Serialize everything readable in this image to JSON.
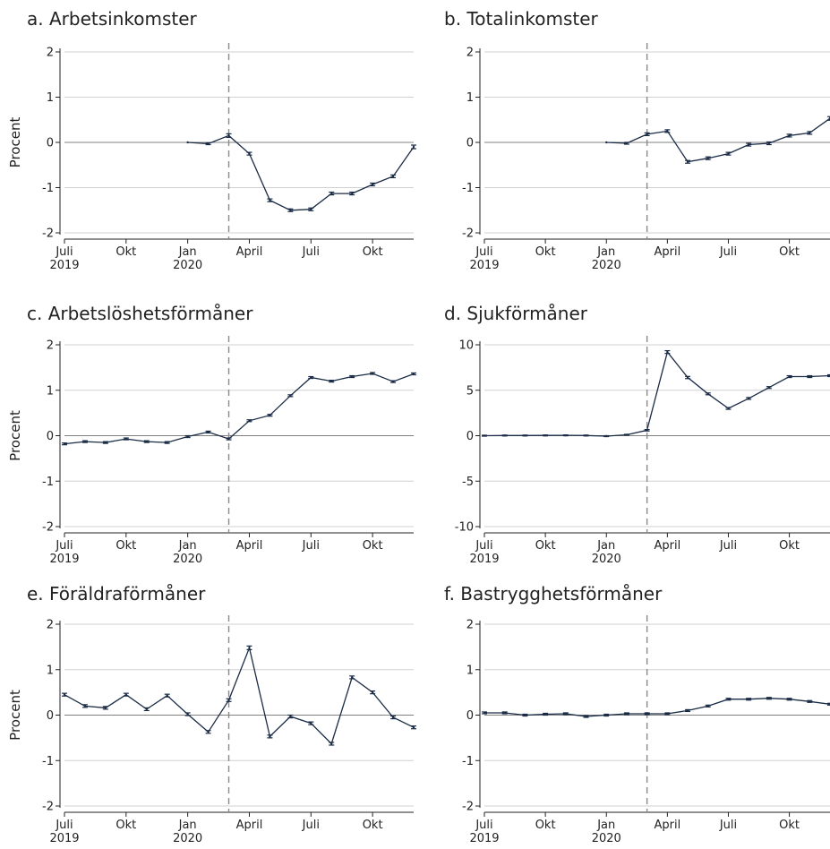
{
  "chart_data": [
    {
      "type": "line",
      "title": "a. Arbetsinkomster",
      "ylabel": "Procent",
      "ylim": [
        -2,
        2
      ],
      "yticks": [
        2,
        1,
        0,
        -1,
        -2
      ],
      "xticks": [
        "2019-07",
        "2019-10",
        "2020-01",
        "2020-04",
        "2020-07",
        "2020-10"
      ],
      "xtick_labels": [
        [
          "Juli",
          "2019"
        ],
        [
          "Okt",
          ""
        ],
        [
          "Jan",
          "2020"
        ],
        [
          "April",
          ""
        ],
        [
          "Juli",
          ""
        ],
        [
          "Okt",
          ""
        ]
      ],
      "xlim": [
        "2019-07",
        "2020-12"
      ],
      "vline": "2020-03",
      "series": [
        {
          "x": [
            "2020-01",
            "2020-02",
            "2020-03",
            "2020-04",
            "2020-05",
            "2020-06",
            "2020-07",
            "2020-08",
            "2020-09",
            "2020-10",
            "2020-11",
            "2020-12"
          ],
          "y": [
            0.0,
            -0.03,
            0.15,
            -0.25,
            -1.28,
            -1.5,
            -1.48,
            -1.13,
            -1.13,
            -0.93,
            -0.75,
            -0.1
          ],
          "err": [
            0,
            0.02,
            0.04,
            0.03,
            0.03,
            0.03,
            0.03,
            0.03,
            0.03,
            0.03,
            0.03,
            0.04
          ]
        }
      ]
    },
    {
      "type": "line",
      "title": "b. Totalinkomster",
      "ylabel": "",
      "ylim": [
        -2,
        2
      ],
      "yticks": [
        2,
        1,
        0,
        -1,
        -2
      ],
      "xticks": [
        "2019-07",
        "2019-10",
        "2020-01",
        "2020-04",
        "2020-07",
        "2020-10"
      ],
      "xtick_labels": [
        [
          "Juli",
          "2019"
        ],
        [
          "Okt",
          ""
        ],
        [
          "Jan",
          "2020"
        ],
        [
          "April",
          ""
        ],
        [
          "Juli",
          ""
        ],
        [
          "Okt",
          ""
        ]
      ],
      "xlim": [
        "2019-07",
        "2020-12"
      ],
      "vline": "2020-03",
      "series": [
        {
          "x": [
            "2020-01",
            "2020-02",
            "2020-03",
            "2020-04",
            "2020-05",
            "2020-06",
            "2020-07",
            "2020-08",
            "2020-09",
            "2020-10",
            "2020-11",
            "2020-12"
          ],
          "y": [
            0.0,
            -0.02,
            0.18,
            0.25,
            -0.43,
            -0.35,
            -0.25,
            -0.05,
            -0.02,
            0.15,
            0.21,
            0.53
          ],
          "err": [
            0,
            0.02,
            0.03,
            0.03,
            0.03,
            0.03,
            0.03,
            0.03,
            0.03,
            0.03,
            0.03,
            0.04
          ]
        }
      ]
    },
    {
      "type": "line",
      "title": "c. Arbetslöshetsförmåner",
      "ylabel": "Procent",
      "ylim": [
        -2,
        2
      ],
      "yticks": [
        2,
        1,
        0,
        -1,
        -2
      ],
      "xticks": [
        "2019-07",
        "2019-10",
        "2020-01",
        "2020-04",
        "2020-07",
        "2020-10"
      ],
      "xtick_labels": [
        [
          "Juli",
          "2019"
        ],
        [
          "Okt",
          ""
        ],
        [
          "Jan",
          "2020"
        ],
        [
          "April",
          ""
        ],
        [
          "Juli",
          ""
        ],
        [
          "Okt",
          ""
        ]
      ],
      "xlim": [
        "2019-07",
        "2020-12"
      ],
      "vline": "2020-03",
      "series": [
        {
          "x": [
            "2019-07",
            "2019-08",
            "2019-09",
            "2019-10",
            "2019-11",
            "2019-12",
            "2020-01",
            "2020-02",
            "2020-03",
            "2020-04",
            "2020-05",
            "2020-06",
            "2020-07",
            "2020-08",
            "2020-09",
            "2020-10",
            "2020-11",
            "2020-12"
          ],
          "y": [
            -0.18,
            -0.13,
            -0.15,
            -0.07,
            -0.13,
            -0.15,
            -0.02,
            0.08,
            -0.07,
            0.33,
            0.45,
            0.88,
            1.28,
            1.2,
            1.3,
            1.37,
            1.19,
            1.36
          ],
          "err": [
            0.02,
            0.02,
            0.02,
            0.02,
            0.02,
            0.02,
            0.02,
            0.02,
            0.02,
            0.02,
            0.02,
            0.02,
            0.02,
            0.02,
            0.02,
            0.02,
            0.02,
            0.02
          ]
        }
      ]
    },
    {
      "type": "line",
      "title": "d. Sjukförmåner",
      "ylabel": "",
      "ylim": [
        -10,
        10
      ],
      "yticks": [
        10,
        5,
        0,
        -5,
        -10
      ],
      "xticks": [
        "2019-07",
        "2019-10",
        "2020-01",
        "2020-04",
        "2020-07",
        "2020-10"
      ],
      "xtick_labels": [
        [
          "Juli",
          "2019"
        ],
        [
          "Okt",
          ""
        ],
        [
          "Jan",
          "2020"
        ],
        [
          "April",
          ""
        ],
        [
          "Juli",
          ""
        ],
        [
          "Okt",
          ""
        ]
      ],
      "xlim": [
        "2019-07",
        "2020-12"
      ],
      "vline": "2020-03",
      "series": [
        {
          "x": [
            "2019-07",
            "2019-08",
            "2019-09",
            "2019-10",
            "2019-11",
            "2019-12",
            "2020-01",
            "2020-02",
            "2020-03",
            "2020-04",
            "2020-05",
            "2020-06",
            "2020-07",
            "2020-08",
            "2020-09",
            "2020-10",
            "2020-11",
            "2020-12"
          ],
          "y": [
            0.0,
            0.02,
            0.02,
            0.03,
            0.04,
            0.02,
            -0.05,
            0.1,
            0.6,
            9.2,
            6.4,
            4.6,
            3.0,
            4.1,
            5.3,
            6.5,
            6.5,
            6.6
          ],
          "err": [
            0.05,
            0.05,
            0.05,
            0.05,
            0.05,
            0.05,
            0.05,
            0.05,
            0.08,
            0.15,
            0.12,
            0.1,
            0.1,
            0.1,
            0.1,
            0.1,
            0.1,
            0.1
          ]
        }
      ]
    },
    {
      "type": "line",
      "title": "e. Föräldraförmåner",
      "ylabel": "Procent",
      "ylim": [
        -2,
        2
      ],
      "yticks": [
        2,
        1,
        0,
        -1,
        -2
      ],
      "xticks": [
        "2019-07",
        "2019-10",
        "2020-01",
        "2020-04",
        "2020-07",
        "2020-10"
      ],
      "xtick_labels": [
        [
          "Juli",
          "2019"
        ],
        [
          "Okt",
          ""
        ],
        [
          "Jan",
          "2020"
        ],
        [
          "April",
          ""
        ],
        [
          "Juli",
          ""
        ],
        [
          "Okt",
          ""
        ]
      ],
      "xlim": [
        "2019-07",
        "2020-12"
      ],
      "vline": "2020-03",
      "series": [
        {
          "x": [
            "2019-07",
            "2019-08",
            "2019-09",
            "2019-10",
            "2019-11",
            "2019-12",
            "2020-01",
            "2020-02",
            "2020-03",
            "2020-04",
            "2020-05",
            "2020-06",
            "2020-07",
            "2020-08",
            "2020-09",
            "2020-10",
            "2020-11",
            "2020-12"
          ],
          "y": [
            0.45,
            0.2,
            0.16,
            0.45,
            0.13,
            0.43,
            0.02,
            -0.37,
            0.33,
            1.48,
            -0.47,
            -0.03,
            -0.18,
            -0.63,
            0.83,
            0.5,
            -0.05,
            -0.27
          ],
          "err": [
            0.03,
            0.03,
            0.03,
            0.03,
            0.03,
            0.03,
            0.03,
            0.03,
            0.03,
            0.04,
            0.03,
            0.03,
            0.03,
            0.03,
            0.03,
            0.03,
            0.03,
            0.03
          ]
        }
      ]
    },
    {
      "type": "line",
      "title": "f. Bastrygghetsförmåner",
      "ylabel": "",
      "ylim": [
        -2,
        2
      ],
      "yticks": [
        2,
        1,
        0,
        -1,
        -2
      ],
      "xticks": [
        "2019-07",
        "2019-10",
        "2020-01",
        "2020-04",
        "2020-07",
        "2020-10"
      ],
      "xtick_labels": [
        [
          "Juli",
          "2019"
        ],
        [
          "Okt",
          ""
        ],
        [
          "Jan",
          "2020"
        ],
        [
          "April",
          ""
        ],
        [
          "Juli",
          ""
        ],
        [
          "Okt",
          ""
        ]
      ],
      "xlim": [
        "2019-07",
        "2020-12"
      ],
      "vline": "2020-03",
      "series": [
        {
          "x": [
            "2019-07",
            "2019-08",
            "2019-09",
            "2019-10",
            "2019-11",
            "2019-12",
            "2020-01",
            "2020-02",
            "2020-03",
            "2020-04",
            "2020-05",
            "2020-06",
            "2020-07",
            "2020-08",
            "2020-09",
            "2020-10",
            "2020-11",
            "2020-12"
          ],
          "y": [
            0.05,
            0.05,
            0.0,
            0.02,
            0.03,
            -0.03,
            0.0,
            0.03,
            0.03,
            0.03,
            0.1,
            0.2,
            0.35,
            0.35,
            0.37,
            0.35,
            0.3,
            0.24
          ],
          "err": [
            0.02,
            0.02,
            0.02,
            0.02,
            0.02,
            0.02,
            0.02,
            0.02,
            0.02,
            0.02,
            0.02,
            0.02,
            0.02,
            0.02,
            0.02,
            0.02,
            0.02,
            0.02
          ]
        }
      ]
    }
  ]
}
